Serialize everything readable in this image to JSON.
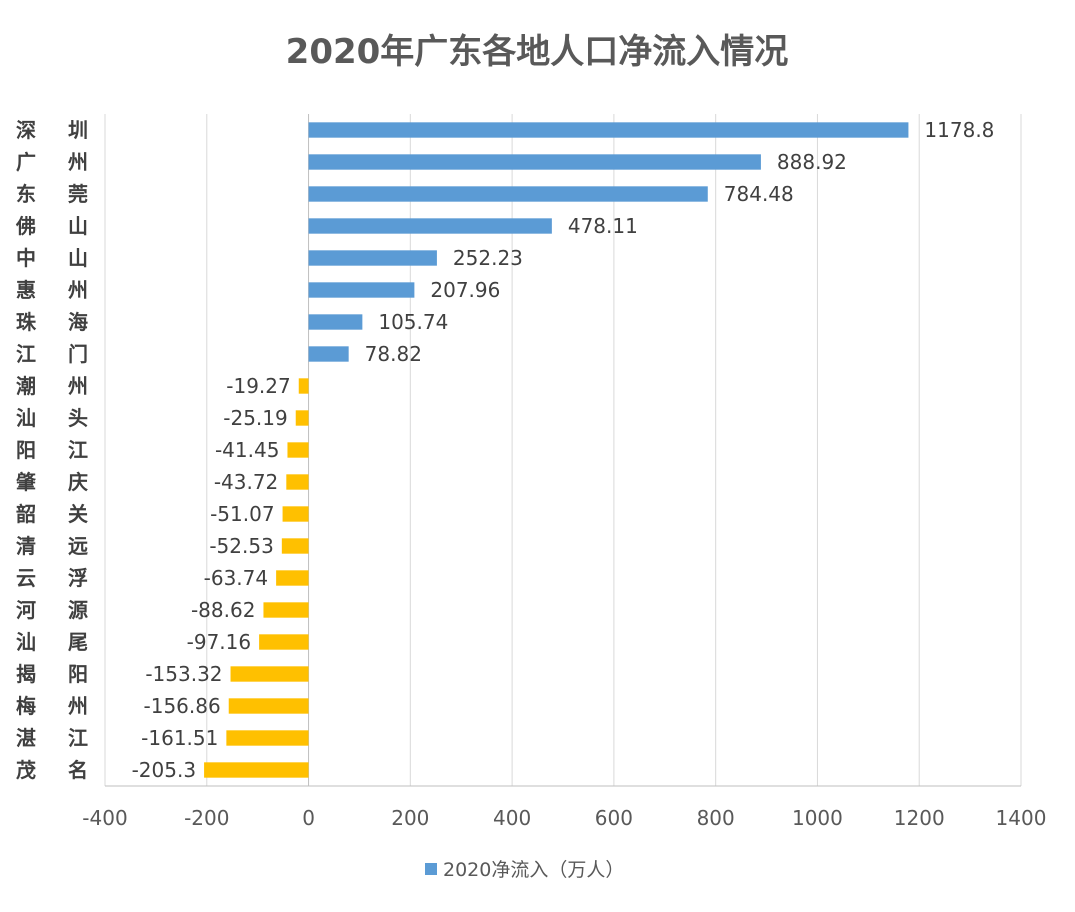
{
  "chart_data": {
    "type": "bar",
    "orientation": "horizontal",
    "title": "2020年广东各地人口净流入情况",
    "categories": [
      "深圳",
      "广州",
      "东莞",
      "佛山",
      "中山",
      "惠州",
      "珠海",
      "江门",
      "潮州",
      "汕头",
      "阳江",
      "肇庆",
      "韶关",
      "清远",
      "云浮",
      "河源",
      "汕尾",
      "揭阳",
      "梅州",
      "湛江",
      "茂名"
    ],
    "category_labels": [
      [
        "深",
        "圳"
      ],
      [
        "广",
        "州"
      ],
      [
        "东",
        "莞"
      ],
      [
        "佛",
        "山"
      ],
      [
        "中",
        "山"
      ],
      [
        "惠",
        "州"
      ],
      [
        "珠",
        "海"
      ],
      [
        "江",
        "门"
      ],
      [
        "潮",
        "州"
      ],
      [
        "汕",
        "头"
      ],
      [
        "阳",
        "江"
      ],
      [
        "肇",
        "庆"
      ],
      [
        "韶",
        "关"
      ],
      [
        "清",
        "远"
      ],
      [
        "云",
        "浮"
      ],
      [
        "河",
        "源"
      ],
      [
        "汕",
        "尾"
      ],
      [
        "揭",
        "阳"
      ],
      [
        "梅",
        "州"
      ],
      [
        "湛",
        "江"
      ],
      [
        "茂",
        "名"
      ]
    ],
    "series": [
      {
        "name": "2020净流入（万人）",
        "values": [
          1178.8,
          888.92,
          784.48,
          478.11,
          252.23,
          207.96,
          105.74,
          78.82,
          -19.27,
          -25.19,
          -41.45,
          -43.72,
          -51.07,
          -52.53,
          -63.74,
          -88.62,
          -97.16,
          -153.32,
          -156.86,
          -161.51,
          -205.3
        ],
        "value_labels": [
          "1178.8",
          "888.92",
          "784.48",
          "478.11",
          "252.23",
          "207.96",
          "105.74",
          "78.82",
          "-19.27",
          "-25.19",
          "-41.45",
          "-43.72",
          "-51.07",
          "-52.53",
          "-63.74",
          "-88.62",
          "-97.16",
          "-153.32",
          "-156.86",
          "-161.51",
          "-205.3"
        ]
      }
    ],
    "xlim": [
      -400,
      1400
    ],
    "xticks": [
      -400,
      -200,
      0,
      200,
      400,
      600,
      800,
      1000,
      1200,
      1400
    ],
    "xtick_labels": [
      "-400",
      "-200",
      "0",
      "200",
      "400",
      "600",
      "800",
      "1000",
      "1200",
      "1400"
    ],
    "grid": true,
    "legend": {
      "position": "bottom",
      "label": "2020净流入（万人）"
    },
    "colors": {
      "positive": "#5B9BD5",
      "negative": "#FFC000",
      "grid": "#D9D9D9",
      "axis": "#BFBFBF"
    }
  }
}
